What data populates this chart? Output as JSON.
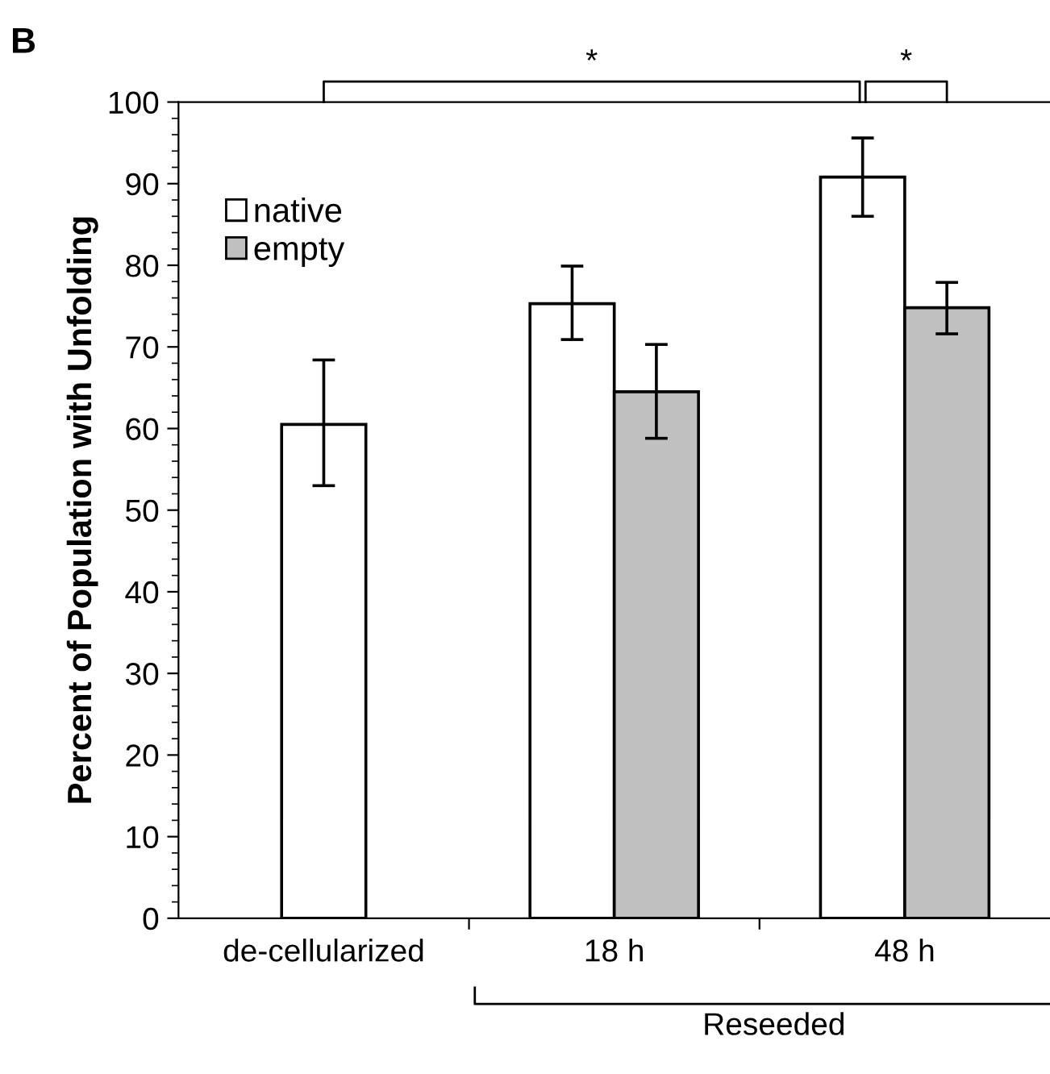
{
  "chart_data": {
    "type": "bar",
    "ylabel": "Percent of Population with Unfolding",
    "categories": [
      "de-cellularized",
      "18 h",
      "48 h"
    ],
    "series": [
      {
        "name": "native",
        "color": "#ffffff",
        "values": [
          60.5,
          75.3,
          90.8
        ],
        "errors": [
          [
            53.0,
            68.4
          ],
          [
            70.9,
            79.9
          ],
          [
            86.0,
            95.6
          ]
        ]
      },
      {
        "name": "empty",
        "color": "#c0c0c0",
        "values": [
          null,
          64.5,
          74.8
        ],
        "errors": [
          null,
          [
            58.8,
            70.3
          ],
          [
            71.6,
            77.9
          ]
        ]
      }
    ],
    "ylim": [
      0,
      100
    ],
    "yticks": [
      0,
      10,
      20,
      30,
      40,
      50,
      60,
      70,
      80,
      90,
      100
    ],
    "grid": false,
    "legend": "top left",
    "annotations": [
      "B",
      "*",
      "*",
      "Reseeded"
    ]
  }
}
